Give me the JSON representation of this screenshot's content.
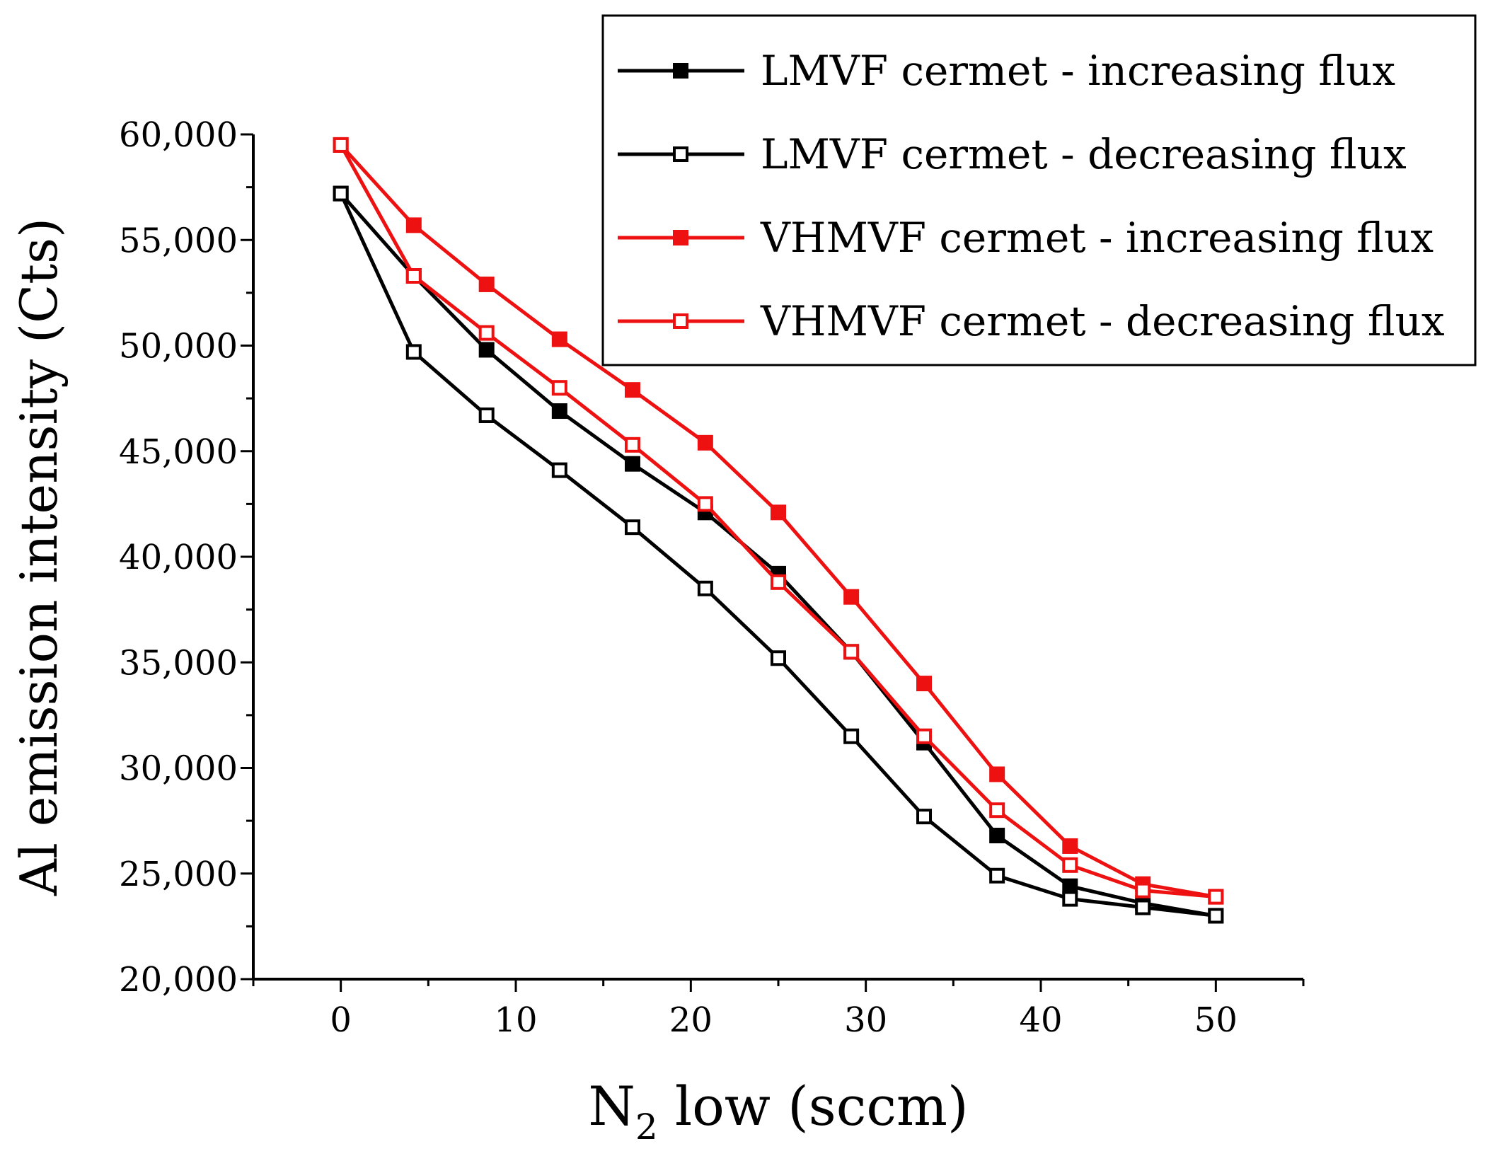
{
  "chart_data": {
    "type": "line",
    "title": "",
    "xlabel": {
      "main": "N",
      "subscript": "2",
      "rest": " low (sccm)"
    },
    "ylabel": "Al emission intensity (Cts)",
    "xlim": [
      -5,
      55
    ],
    "ylim": [
      20000,
      60000
    ],
    "x_ticks": [
      0,
      10,
      20,
      30,
      40,
      50
    ],
    "x_tick_labels": [
      "0",
      "10",
      "20",
      "30",
      "40",
      "50"
    ],
    "y_ticks": [
      20000,
      25000,
      30000,
      35000,
      40000,
      45000,
      50000,
      55000,
      60000
    ],
    "y_tick_labels": [
      "20,000",
      "25,000",
      "30,000",
      "35,000",
      "40,000",
      "45,000",
      "50,000",
      "55,000",
      "60,000"
    ],
    "legend_position": "top-right",
    "x": [
      0,
      4.17,
      8.33,
      12.5,
      16.67,
      20.83,
      25,
      29.17,
      33.33,
      37.5,
      41.67,
      45.83,
      50
    ],
    "series": [
      {
        "name": "LMVF cermet - increasing flux",
        "color": "#000000",
        "marker": "filled-square",
        "values": [
          57200,
          53300,
          49800,
          46900,
          44400,
          42100,
          39200,
          35500,
          31200,
          26800,
          24400,
          23600,
          23000
        ]
      },
      {
        "name": "LMVF cermet - decreasing flux",
        "color": "#000000",
        "marker": "open-square",
        "values": [
          57200,
          49700,
          46700,
          44100,
          41400,
          38500,
          35200,
          31500,
          27700,
          24900,
          23800,
          23400,
          23000
        ]
      },
      {
        "name": "VHMVF cermet - increasing flux",
        "color": "#ee1111",
        "marker": "filled-square",
        "values": [
          59500,
          55700,
          52900,
          50300,
          47900,
          45400,
          42100,
          38100,
          34000,
          29700,
          26300,
          24500,
          23900
        ]
      },
      {
        "name": "VHMVF cermet - decreasing flux",
        "color": "#ee1111",
        "marker": "open-square",
        "values": [
          59500,
          53300,
          50600,
          48000,
          45300,
          42500,
          38800,
          35500,
          31500,
          28000,
          25400,
          24200,
          23900
        ]
      }
    ]
  }
}
